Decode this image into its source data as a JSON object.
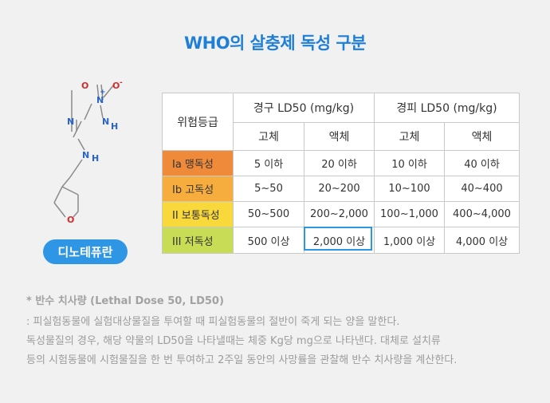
{
  "title": "WHO의 살충제 독성 구분",
  "compound": {
    "name": "디노테퓨란",
    "atoms": {
      "o1": "O",
      "o2": "O",
      "n_plus": "N",
      "plus": "+",
      "minus": "-",
      "n_eq": "N",
      "n_h1": "N",
      "h1": "H",
      "n_h2": "N",
      "h2": "H",
      "o_ring": "O"
    }
  },
  "table": {
    "header": {
      "grade": "위험등급",
      "oral": "경구 LD50 (mg/kg)",
      "dermal": "경피 LD50 (mg/kg)",
      "solid": "고체",
      "liquid": "액체"
    },
    "rows": [
      {
        "level": "Ia 맹독성",
        "color": "#ef8a3a",
        "values": [
          "5 이하",
          "20 이하",
          "10 이하",
          "40 이하"
        ]
      },
      {
        "level": "Ib 고독성",
        "color": "#f6ad3e",
        "values": [
          "5~50",
          "20~200",
          "10~100",
          "40~400"
        ]
      },
      {
        "level": "II 보통독성",
        "color": "#f8d83a",
        "values": [
          "50~500",
          "200~2,000",
          "100~1,000",
          "400~4,000"
        ]
      },
      {
        "level": "III 저독성",
        "color": "#c8dc56",
        "values": [
          "500 이상",
          "2,000 이상",
          "1,000 이상",
          "4,000 이상"
        ]
      }
    ],
    "highlighted_value": "2,000 이상"
  },
  "notes": {
    "heading": "* 반수 치사량 (Lethal Dose 50, LD50)",
    "lines": [
      ": 피실험동물에 실험대상물질을 투여할 때 피실험동물의 절반이 죽게 되는 양을 말한다.",
      "독성물질의 경우, 해당 약물의 LD50을 나타낼때는 체중 Kg당 mg으로 나타낸다. 대체로 설치류",
      "등의 시험동물에 시험물질을 한 번 투여하고 2주일 동안의 사망률을 관찰해 반수 치사량을 계산한다."
    ]
  },
  "colors": {
    "title": "#1f7fd6",
    "pill": "#2f95e5",
    "highlight_border": "#2b96e3"
  }
}
